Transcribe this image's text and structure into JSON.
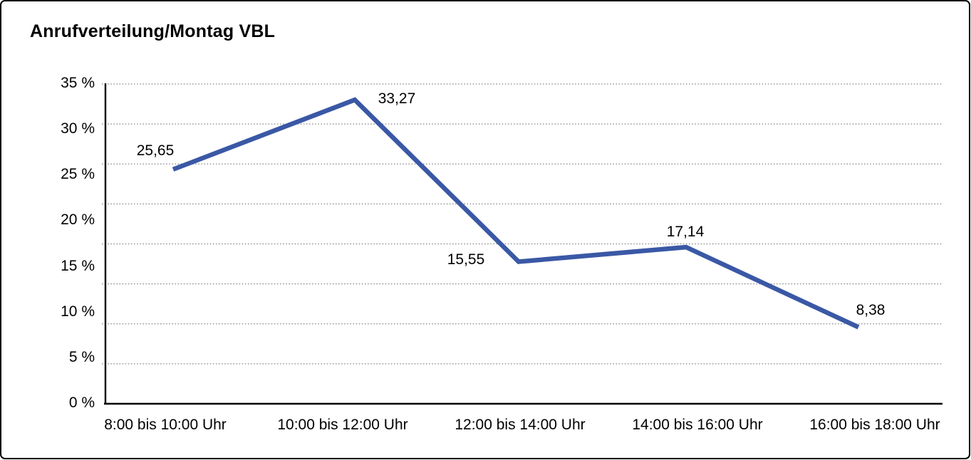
{
  "chart_data": {
    "type": "line",
    "title": "Anrufverteilung/Montag VBL",
    "categories": [
      "8:00 bis 10:00 Uhr",
      "10:00 bis 12:00 Uhr",
      "12:00 bis 14:00 Uhr",
      "14:00 bis 16:00 Uhr",
      "16:00 bis 18:00 Uhr"
    ],
    "values": [
      25.65,
      33.27,
      15.55,
      17.14,
      8.38
    ],
    "value_labels": [
      "25,65",
      "33,27",
      "15,55",
      "17,14",
      "8,38"
    ],
    "xlabel": "",
    "ylabel": "",
    "ylim": [
      0,
      35
    ],
    "y_ticks": [
      35,
      30,
      25,
      20,
      15,
      10,
      5,
      0
    ],
    "y_tick_labels": [
      "35 %",
      "30 %",
      "25 %",
      "20 %",
      "15 %",
      "10 %",
      "5 %",
      "0 %"
    ],
    "grid": "horizontal-dotted",
    "grid_intervals": 8,
    "legend": "none",
    "line_color": "#3A58A5",
    "grid_color": "#808080",
    "axis_color": "#000000",
    "text_color": "#000000"
  }
}
